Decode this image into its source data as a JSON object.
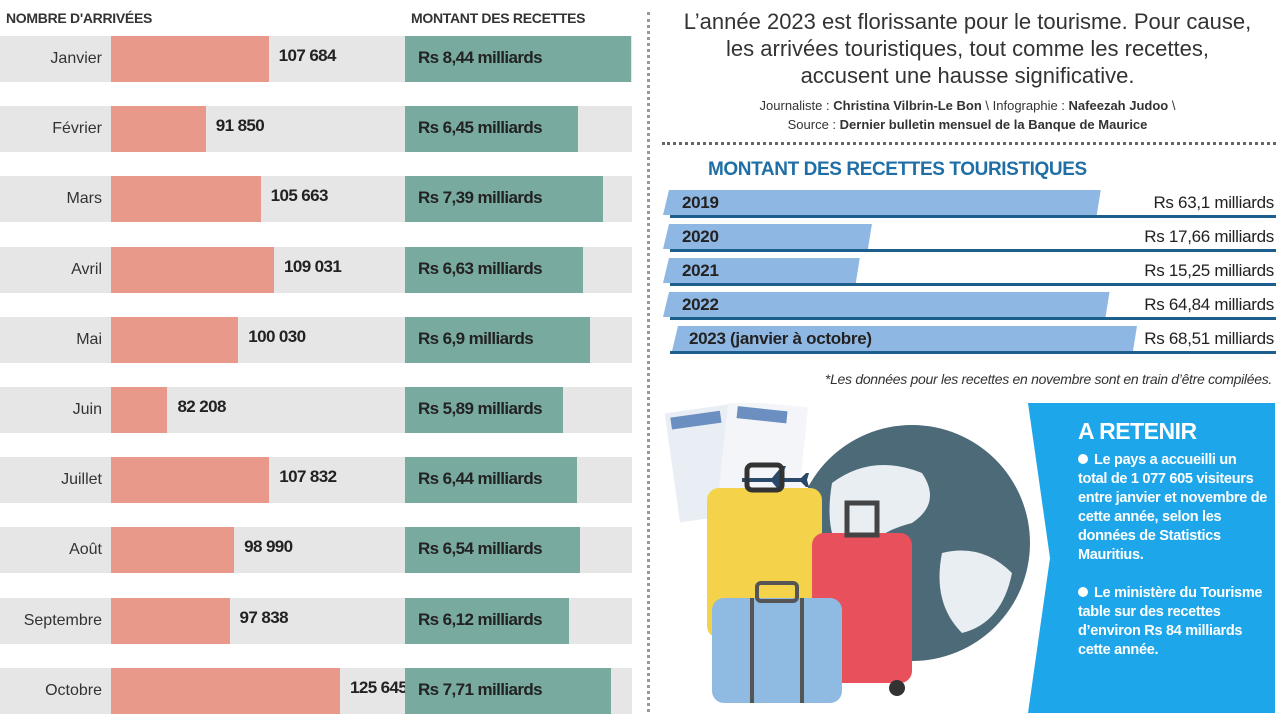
{
  "left": {
    "header_arrivals": "NOMBRE D'ARRIVÉES",
    "header_revenue": "MONTANT DES RECETTES"
  },
  "intro": {
    "text": "L’année 2023 est florissante pour le tourisme. Pour cause, les arrivées touristiques, tout comme les recettes, accusent une hausse significative.",
    "journalist_label": "Journaliste : ",
    "journalist": "Christina Vilbrin-Le Bon",
    "infographie_label": " \\ Infographie : ",
    "infographie": "Nafeezah Judoo",
    "sep": " \\",
    "source_label": "Source : ",
    "source": "Dernier bulletin mensuel de la Banque de Maurice"
  },
  "chart_data": [
    {
      "type": "bar",
      "orientation": "horizontal",
      "categories": [
        "Janvier",
        "Février",
        "Mars",
        "Avril",
        "Mai",
        "Juin",
        "Juillet",
        "Août",
        "Septembre",
        "Octobre"
      ],
      "series": [
        {
          "name": "NOMBRE D'ARRIVÉES",
          "values": [
            107684,
            91850,
            105663,
            109031,
            100030,
            82208,
            107832,
            98990,
            97838,
            125645
          ],
          "labels": [
            "107 684",
            "91 850",
            "105 663",
            "109 031",
            "100 030",
            "82 208",
            "107 832",
            "98 990",
            "97 838",
            "125 645"
          ],
          "color": "#e9998a"
        },
        {
          "name": "MONTANT DES RECETTES",
          "values": [
            8.44,
            6.45,
            7.39,
            6.63,
            6.9,
            5.89,
            6.44,
            6.54,
            6.12,
            7.71
          ],
          "labels": [
            "Rs 8,44 milliards",
            "Rs 6,45 milliards",
            "Rs 7,39 milliards",
            "Rs 6,63 milliards",
            "Rs 6,9 milliards",
            "Rs 5,89 milliards",
            "Rs 6,44 milliards",
            "Rs 6,54 milliards",
            "Rs 6,12 milliards",
            "Rs 7,71 milliards"
          ],
          "color": "#78aa9f"
        }
      ]
    },
    {
      "type": "bar",
      "orientation": "horizontal",
      "title": "MONTANT DES RECETTES TOURISTIQUES",
      "categories": [
        "2019",
        "2020",
        "2021",
        "2022",
        "2023 (janvier à octobre)"
      ],
      "values": [
        63.1,
        17.66,
        15.25,
        64.84,
        68.51
      ],
      "labels": [
        "Rs 63,1 milliards",
        "Rs 17,66 milliards",
        "Rs 15,25 milliards",
        "Rs 64,84 milliards",
        "Rs 68,51 milliards"
      ],
      "color": "#8fb7e3",
      "footnote": "*Les données pour les recettes en novembre sont en train d’être compilées."
    }
  ],
  "retenir": {
    "title": "A RETENIR",
    "bullets": [
      "Le pays a accueilli un total de 1 077 605 visiteurs entre janvier et novembre de cette année, selon les données de Statistics Mauritius.",
      "Le ministère du Tourisme table sur des recettes d’environ Rs 84 milliards cette année."
    ],
    "color": "#1ea6ea"
  },
  "illustration": "suitcases-globe-plane-tickets"
}
